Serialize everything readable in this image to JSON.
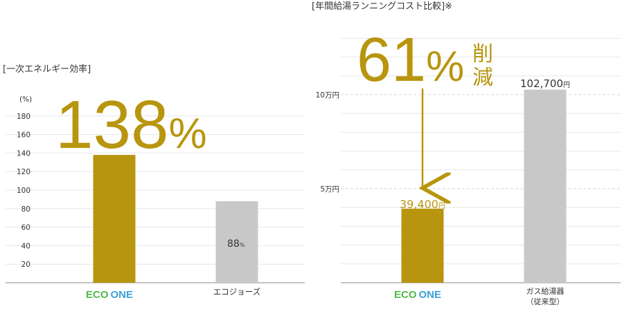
{
  "chart_data": [
    {
      "type": "bar",
      "title": "[一次エネルギー効率]",
      "ylabel": "(%)",
      "ylim": [
        0,
        200
      ],
      "yticks": [
        "20",
        "40",
        "60",
        "80",
        "100",
        "120",
        "140",
        "160",
        "180"
      ],
      "categories": [
        "ECO ONE",
        "エコジョーズ"
      ],
      "values": [
        138,
        88
      ],
      "colors": [
        "#b8950e",
        "#c8c8c8"
      ],
      "data_labels": [
        "",
        "88%"
      ],
      "headline": {
        "value": "138",
        "unit": "%"
      }
    },
    {
      "type": "bar",
      "title": "[年間給湯ランニングコスト比較]※",
      "ylim": [
        0,
        130000
      ],
      "yticks": [
        {
          "value": 50000,
          "label": "5万円"
        },
        {
          "value": 100000,
          "label": "10万円"
        }
      ],
      "categories": [
        "ECO ONE",
        "ガス給湯器（従来型）"
      ],
      "category_lines": [
        [
          "ECO ONE"
        ],
        [
          "ガス給湯器",
          "（従来型）"
        ]
      ],
      "values": [
        39400,
        102700
      ],
      "colors": [
        "#b8950e",
        "#c8c8c8"
      ],
      "data_labels": [
        {
          "num": "39,400",
          "unit": "円"
        },
        {
          "num": "102,700",
          "unit": "円"
        }
      ],
      "headline": {
        "value": "61",
        "unit": "%",
        "suffix": [
          "削",
          "減"
        ]
      }
    }
  ],
  "logo": {
    "eco": "ECO",
    "one": "ONE",
    "eco_color": "#4fb848",
    "one_color": "#3aa0d8"
  }
}
